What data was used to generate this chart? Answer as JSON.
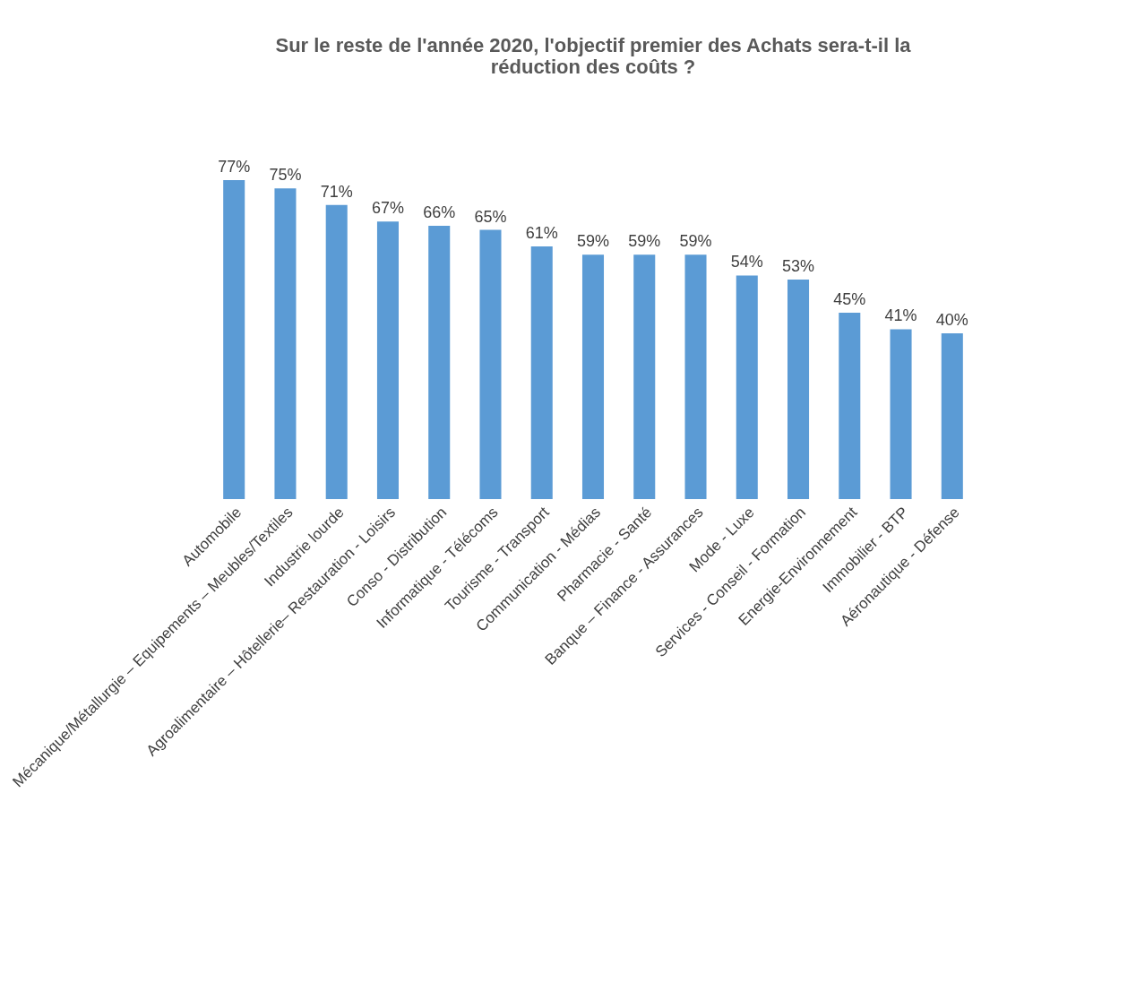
{
  "chart_data": {
    "type": "bar",
    "title": "Sur le reste de l'année 2020, l'objectif premier des Achats sera-t-il la réduction des coûts ?",
    "categories": [
      "Automobile",
      "Mécanique/Métallurgie – Equipements – Meubles/Textiles",
      "Industrie lourde",
      "Agroalimentaire – Hôtellerie– Restauration - Loisirs",
      "Conso - Distribution",
      "Informatique - Télécoms",
      "Tourisme - Transport",
      "Communication - Médias",
      "Pharmacie - Santé",
      "Banque – Finance - Assurances",
      "Mode - Luxe",
      "Services - Conseil - Formation",
      "Energie-Environnement",
      "Immobilier - BTP",
      "Aéronautique - Défense"
    ],
    "values": [
      77,
      75,
      71,
      67,
      66,
      65,
      61,
      59,
      59,
      59,
      54,
      53,
      45,
      41,
      40
    ],
    "value_labels": [
      "77%",
      "75%",
      "71%",
      "67%",
      "66%",
      "65%",
      "61%",
      "59%",
      "59%",
      "59%",
      "54%",
      "53%",
      "45%",
      "41%",
      "40%"
    ],
    "color": "#5b9bd5"
  }
}
